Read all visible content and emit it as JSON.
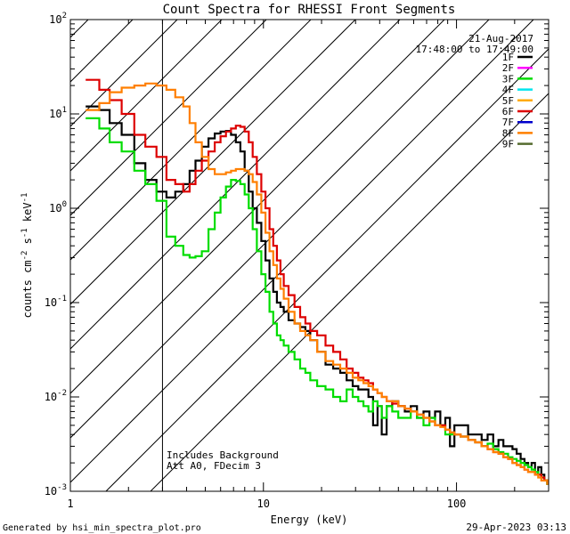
{
  "chart_data": {
    "type": "line",
    "title": "Count Spectra for RHESSI Front Segments",
    "xlabel": "Energy (keV)",
    "ylabel": "counts cm-2 s-1 keV-1",
    "xscale": "log",
    "yscale": "log",
    "xlim": [
      1,
      300
    ],
    "ylim": [
      0.001,
      100
    ],
    "x_ticks": [
      {
        "value": 1,
        "label": "1"
      },
      {
        "value": 10,
        "label": "10"
      },
      {
        "value": 100,
        "label": "100"
      }
    ],
    "y_ticks": [
      {
        "value": 100,
        "base": "10",
        "exp": "2"
      },
      {
        "value": 10,
        "base": "10",
        "exp": "1"
      },
      {
        "value": 1,
        "base": "10",
        "exp": "0"
      },
      {
        "value": 0.1,
        "base": "10",
        "exp": "-1"
      },
      {
        "value": 0.01,
        "base": "10",
        "exp": "-2"
      },
      {
        "value": 0.001,
        "base": "10",
        "exp": "-3"
      }
    ],
    "date": "21-Aug-2017",
    "time_range": "17:48:00 to 17:49:00",
    "attenuator_cutoff_kev": 3,
    "annotations": [
      "Includes Background",
      "Att A0, FDecim 3"
    ],
    "legend": [
      {
        "name": "1F",
        "color": "#000000"
      },
      {
        "name": "2F",
        "color": "#ff00ff"
      },
      {
        "name": "3F",
        "color": "#00dd00"
      },
      {
        "name": "4F",
        "color": "#00e5ee"
      },
      {
        "name": "5F",
        "color": "#ffaa00"
      },
      {
        "name": "6F",
        "color": "#dd0000"
      },
      {
        "name": "7F",
        "color": "#0000cc"
      },
      {
        "name": "8F",
        "color": "#ff7f00"
      },
      {
        "name": "9F",
        "color": "#556b2f"
      }
    ],
    "series": [
      {
        "name": "1F",
        "color": "#000000",
        "energy": [
          1.2,
          1.33,
          1.5,
          1.7,
          2.0,
          2.3,
          2.6,
          3.0,
          3.3,
          3.7,
          4.0,
          4.3,
          4.6,
          5.0,
          5.4,
          5.8,
          6.2,
          6.6,
          7.0,
          7.4,
          7.8,
          8.2,
          8.6,
          9.0,
          9.5,
          10.0,
          10.5,
          11.0,
          11.5,
          12.0,
          12.5,
          13.0,
          14.0,
          15.0,
          16.0,
          17.0,
          18.0,
          20.0,
          22.0,
          24.0,
          26.0,
          28.0,
          30.0,
          32.0,
          34.0,
          36.0,
          38.0,
          40.0,
          42.0,
          45.0,
          48.0,
          52.0,
          56.0,
          60.0,
          65.0,
          70.0,
          75.0,
          80.0,
          85.0,
          90.0,
          95.0,
          100.0,
          110.0,
          120.0,
          130.0,
          140.0,
          150.0,
          160.0,
          170.0,
          180.0,
          190.0,
          200.0,
          210.0,
          220.0,
          230.0,
          240.0,
          250.0,
          260.0,
          270.0,
          280.0,
          290.0,
          300.0
        ],
        "counts": [
          12,
          12,
          11,
          8,
          6,
          3.0,
          2.0,
          1.5,
          1.3,
          1.5,
          1.8,
          2.5,
          3.2,
          4.5,
          5.5,
          6.2,
          6.5,
          6.6,
          6.0,
          5.0,
          4.0,
          2.5,
          1.5,
          1.0,
          0.7,
          0.45,
          0.28,
          0.18,
          0.13,
          0.1,
          0.09,
          0.08,
          0.065,
          0.06,
          0.055,
          0.05,
          0.04,
          0.03,
          0.022,
          0.02,
          0.018,
          0.015,
          0.013,
          0.012,
          0.012,
          0.01,
          0.005,
          0.008,
          0.004,
          0.008,
          0.009,
          0.008,
          0.007,
          0.008,
          0.006,
          0.007,
          0.006,
          0.007,
          0.005,
          0.006,
          0.003,
          0.005,
          0.005,
          0.004,
          0.004,
          0.0035,
          0.004,
          0.003,
          0.0035,
          0.003,
          0.003,
          0.0028,
          0.0025,
          0.0022,
          0.002,
          0.0018,
          0.002,
          0.0015,
          0.0018,
          0.0015,
          0.0013,
          0.0012
        ]
      },
      {
        "name": "3F",
        "color": "#00dd00",
        "energy": [
          1.2,
          1.33,
          1.5,
          1.7,
          2.0,
          2.3,
          2.6,
          3.0,
          3.3,
          3.7,
          4.0,
          4.3,
          4.6,
          5.0,
          5.4,
          5.8,
          6.2,
          6.6,
          7.0,
          7.4,
          7.8,
          8.2,
          8.6,
          9.0,
          9.5,
          10.0,
          10.5,
          11.0,
          11.5,
          12.0,
          12.5,
          13.0,
          14.0,
          15.0,
          16.0,
          17.0,
          18.0,
          20.0,
          22.0,
          24.0,
          26.0,
          28.0,
          30.0,
          32.0,
          34.0,
          36.0,
          38.0,
          40.0,
          42.0,
          45.0,
          48.0,
          52.0,
          56.0,
          60.0,
          65.0,
          70.0,
          75.0,
          80.0,
          85.0,
          90.0,
          95.0,
          100.0,
          110.0,
          120.0,
          130.0,
          140.0,
          150.0,
          160.0,
          170.0,
          180.0,
          190.0,
          200.0,
          210.0,
          220.0,
          230.0,
          240.0,
          250.0,
          260.0,
          270.0,
          280.0,
          290.0,
          300.0
        ],
        "counts": [
          9,
          9,
          7,
          5,
          4,
          2.5,
          1.8,
          1.2,
          0.5,
          0.4,
          0.32,
          0.3,
          0.31,
          0.35,
          0.6,
          0.9,
          1.3,
          1.7,
          2.0,
          1.95,
          1.8,
          1.4,
          1.0,
          0.6,
          0.35,
          0.2,
          0.13,
          0.08,
          0.06,
          0.045,
          0.04,
          0.035,
          0.03,
          0.025,
          0.02,
          0.018,
          0.015,
          0.013,
          0.012,
          0.01,
          0.009,
          0.012,
          0.01,
          0.009,
          0.008,
          0.007,
          0.009,
          0.008,
          0.006,
          0.008,
          0.007,
          0.006,
          0.006,
          0.007,
          0.006,
          0.005,
          0.006,
          0.005,
          0.005,
          0.004,
          0.004,
          0.004,
          0.0038,
          0.0035,
          0.0033,
          0.003,
          0.0032,
          0.0028,
          0.0026,
          0.0025,
          0.0023,
          0.0022,
          0.0021,
          0.002,
          0.0019,
          0.0018,
          0.0017,
          0.0016,
          0.0015,
          0.0014,
          0.0013,
          0.0012
        ]
      },
      {
        "name": "6F",
        "color": "#dd0000",
        "energy": [
          1.2,
          1.33,
          1.5,
          1.7,
          2.0,
          2.3,
          2.6,
          3.0,
          3.3,
          3.7,
          4.0,
          4.3,
          4.6,
          5.0,
          5.4,
          5.8,
          6.2,
          6.6,
          7.0,
          7.4,
          7.8,
          8.2,
          8.6,
          9.0,
          9.5,
          10.0,
          10.5,
          11.0,
          11.5,
          12.0,
          12.5,
          13.0,
          14.0,
          15.0,
          16.0,
          17.0,
          18.0,
          20.0,
          22.0,
          24.0,
          26.0,
          28.0,
          30.0,
          32.0,
          34.0,
          36.0,
          38.0,
          40.0,
          42.0,
          45.0,
          48.0,
          52.0,
          56.0,
          60.0,
          65.0,
          70.0,
          75.0,
          80.0,
          85.0,
          90.0,
          95.0,
          100.0,
          110.0,
          120.0,
          130.0,
          140.0,
          150.0,
          160.0,
          170.0,
          180.0,
          190.0,
          200.0,
          210.0,
          220.0,
          230.0,
          240.0,
          250.0,
          260.0,
          270.0,
          280.0,
          290.0,
          300.0
        ],
        "counts": [
          23,
          23,
          18,
          14,
          10,
          6,
          4.5,
          3.5,
          2.0,
          1.8,
          1.5,
          1.8,
          2.5,
          3.2,
          4.0,
          5.0,
          5.8,
          6.5,
          7.0,
          7.5,
          7.3,
          6.5,
          5.0,
          3.5,
          2.3,
          1.5,
          1.0,
          0.6,
          0.4,
          0.28,
          0.2,
          0.15,
          0.12,
          0.09,
          0.07,
          0.06,
          0.05,
          0.045,
          0.035,
          0.03,
          0.025,
          0.02,
          0.018,
          0.016,
          0.015,
          0.014,
          0.012,
          0.011,
          0.01,
          0.009,
          0.0085,
          0.008,
          0.0075,
          0.007,
          0.0065,
          0.006,
          0.0055,
          0.005,
          0.005,
          0.0045,
          0.0042,
          0.004,
          0.0038,
          0.0035,
          0.0033,
          0.003,
          0.0028,
          0.0026,
          0.0025,
          0.0023,
          0.0022,
          0.002,
          0.0019,
          0.0018,
          0.0017,
          0.0016,
          0.0016,
          0.0015,
          0.0015,
          0.0014,
          0.0013,
          0.0013
        ]
      },
      {
        "name": "8F",
        "color": "#ff7f00",
        "energy": [
          1.2,
          1.33,
          1.5,
          1.7,
          2.0,
          2.3,
          2.6,
          3.0,
          3.3,
          3.7,
          4.0,
          4.3,
          4.6,
          5.0,
          5.4,
          5.8,
          6.2,
          6.6,
          7.0,
          7.4,
          7.8,
          8.2,
          8.6,
          9.0,
          9.5,
          10.0,
          10.5,
          11.0,
          11.5,
          12.0,
          12.5,
          13.0,
          14.0,
          15.0,
          16.0,
          17.0,
          18.0,
          20.0,
          22.0,
          24.0,
          26.0,
          28.0,
          30.0,
          32.0,
          34.0,
          36.0,
          38.0,
          40.0,
          42.0,
          45.0,
          48.0,
          52.0,
          56.0,
          60.0,
          65.0,
          70.0,
          75.0,
          80.0,
          85.0,
          90.0,
          95.0,
          100.0,
          110.0,
          120.0,
          130.0,
          140.0,
          150.0,
          160.0,
          170.0,
          180.0,
          190.0,
          200.0,
          210.0,
          220.0,
          230.0,
          240.0,
          250.0,
          260.0,
          270.0,
          280.0,
          290.0,
          300.0
        ],
        "counts": [
          11,
          11,
          13,
          17,
          19,
          20,
          21,
          20,
          18,
          15,
          12,
          8,
          5,
          3.5,
          2.6,
          2.3,
          2.3,
          2.4,
          2.5,
          2.6,
          2.6,
          2.5,
          2.3,
          1.9,
          1.4,
          0.9,
          0.55,
          0.35,
          0.25,
          0.18,
          0.14,
          0.11,
          0.08,
          0.06,
          0.05,
          0.045,
          0.04,
          0.03,
          0.024,
          0.022,
          0.02,
          0.018,
          0.016,
          0.015,
          0.014,
          0.013,
          0.012,
          0.011,
          0.01,
          0.009,
          0.009,
          0.008,
          0.0075,
          0.007,
          0.0065,
          0.006,
          0.0055,
          0.005,
          0.0048,
          0.0045,
          0.0042,
          0.004,
          0.0038,
          0.0035,
          0.0033,
          0.003,
          0.0028,
          0.0026,
          0.0025,
          0.0023,
          0.0022,
          0.002,
          0.0019,
          0.0018,
          0.0017,
          0.0016,
          0.0016,
          0.0015,
          0.0014,
          0.0013,
          0.0013,
          0.0012
        ]
      }
    ]
  },
  "footer": {
    "generated_by": "Generated by hsi_min_spectra_plot.pro",
    "timestamp": "29-Apr-2023 03:13"
  }
}
